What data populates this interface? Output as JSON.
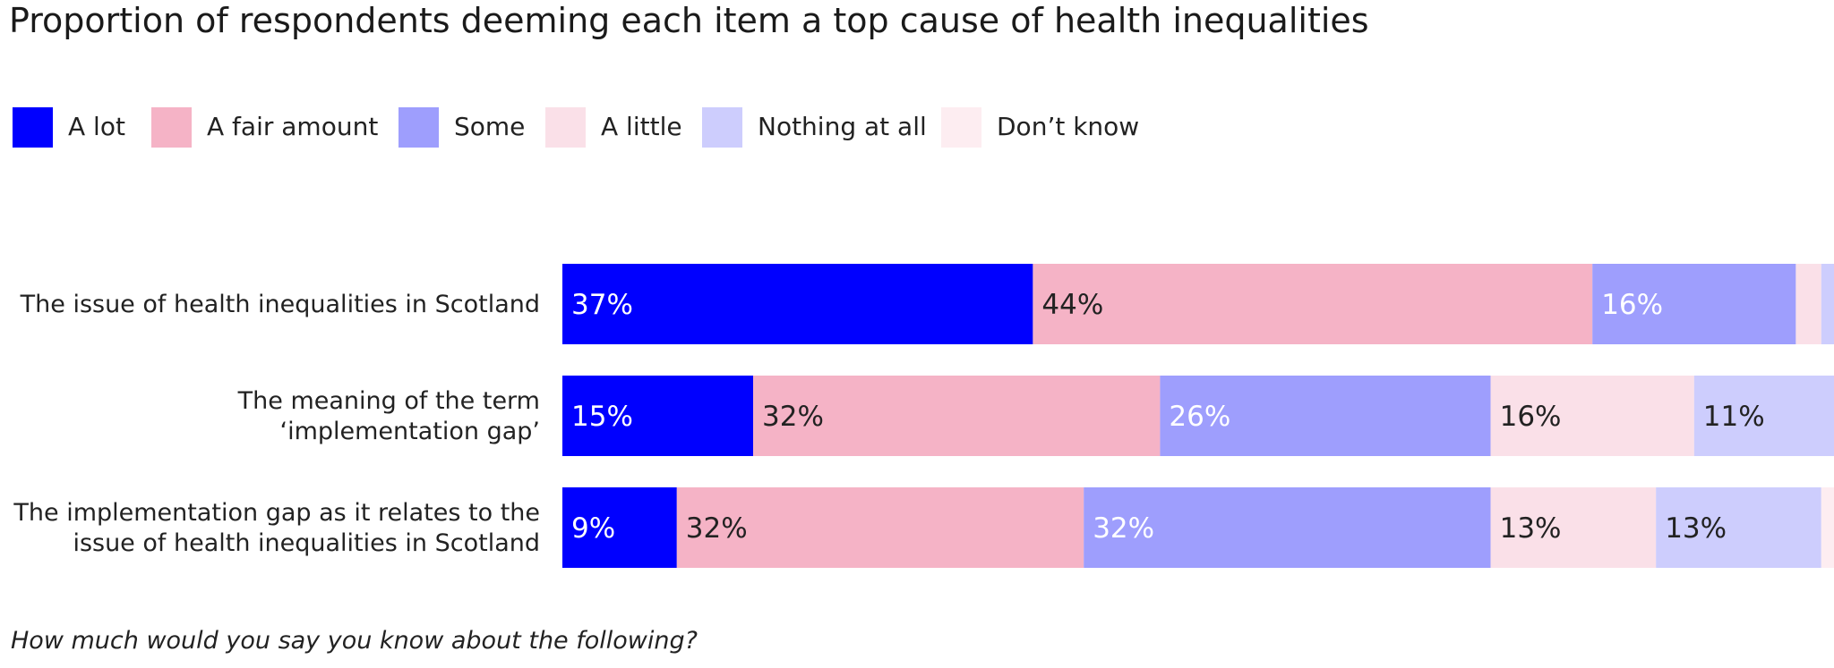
{
  "chart_data": {
    "type": "bar",
    "orientation": "horizontal",
    "stacked": true,
    "title": "Proportion of respondents deeming each item a top cause of health inequalities",
    "footnote": "How much would you say you know about the following?",
    "xlim": [
      0,
      100
    ],
    "grid": false,
    "legend_position": "top-left",
    "categories": [
      [
        "The issue of health inequalities in Scotland"
      ],
      [
        "The meaning of the term",
        "‘implementation gap’"
      ],
      [
        "The implementation gap as it relates to the",
        "issue of health inequalities in Scotland"
      ]
    ],
    "series": [
      {
        "name": "A lot",
        "color": "#0000ff",
        "label_color": "#ffffff",
        "values": [
          37,
          15,
          9
        ],
        "labels": [
          "37%",
          "15%",
          "9%"
        ]
      },
      {
        "name": "A fair amount",
        "color": "#f5b3c6",
        "label_color": "#222222",
        "values": [
          44,
          32,
          32
        ],
        "labels": [
          "44%",
          "32%",
          "32%"
        ]
      },
      {
        "name": "Some",
        "color": "#9e9efd",
        "label_color": "#ffffff",
        "values": [
          16,
          26,
          32
        ],
        "labels": [
          "16%",
          "26%",
          "32%"
        ]
      },
      {
        "name": "A little",
        "color": "#fae0e8",
        "label_color": "#222222",
        "values": [
          2,
          16,
          13
        ],
        "labels": [
          "",
          "16%",
          "13%"
        ]
      },
      {
        "name": "Nothing at all",
        "color": "#cdcdfd",
        "label_color": "#222222",
        "values": [
          1,
          11,
          13
        ],
        "labels": [
          "",
          "11%",
          "13%"
        ]
      },
      {
        "name": "Don’t know",
        "color": "#fdedf1",
        "label_color": "#222222",
        "values": [
          0,
          0,
          1
        ],
        "labels": [
          "",
          "",
          ""
        ]
      }
    ]
  }
}
